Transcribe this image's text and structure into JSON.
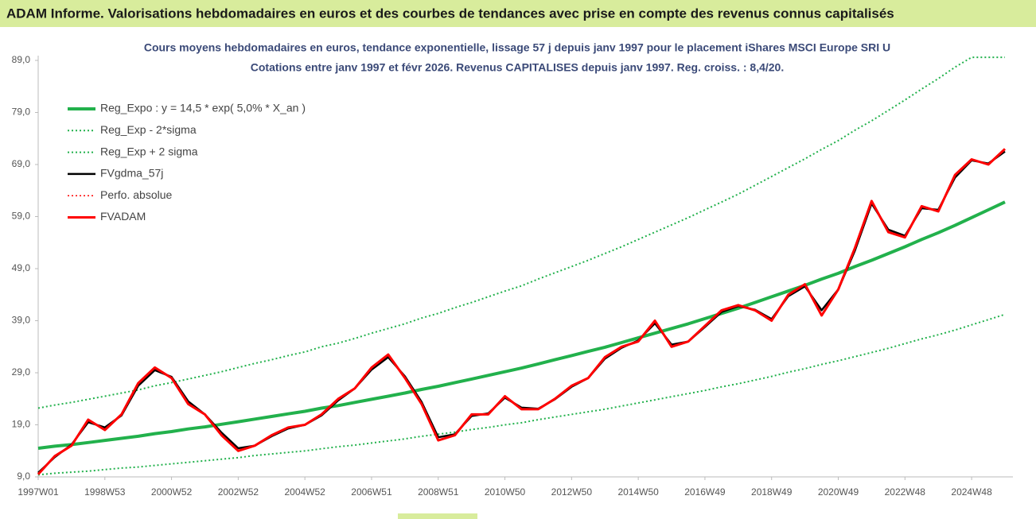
{
  "header": {
    "title": "ADAM Informe. Valorisations hebdomadaires en euros et des courbes de tendances avec prise en compte des revenus connus capitalisés"
  },
  "chart_data": {
    "type": "line",
    "title": "Cours moyens hebdomadaires en euros, tendance exponentielle, lissage 57 j depuis janv 1997 pour le placement iShares MSCI Europe SRI U",
    "subtitle": "Cotations entre janv 1997 et févr 2026. Revenus CAPITALISES depuis janv 1997. Reg. croiss. : 8,4/20.",
    "categories": [
      "1997W01",
      null,
      null,
      null,
      "1998W53",
      null,
      null,
      null,
      "2000W52",
      null,
      null,
      null,
      "2002W52",
      null,
      null,
      null,
      "2004W52",
      null,
      null,
      null,
      "2006W51",
      null,
      null,
      null,
      "2008W51",
      null,
      null,
      null,
      "2010W50",
      null,
      null,
      null,
      "2012W50",
      null,
      null,
      null,
      "2014W50",
      null,
      null,
      null,
      "2016W49",
      null,
      null,
      null,
      "2018W49",
      null,
      null,
      null,
      "2020W49",
      null,
      null,
      null,
      "2022W48",
      null,
      null,
      null,
      "2024W48",
      null,
      null
    ],
    "ylim": [
      9,
      89
    ],
    "yticks": [
      {
        "value": 9,
        "label": "9,0"
      },
      {
        "value": 19,
        "label": "19,0"
      },
      {
        "value": 29,
        "label": "29,0"
      },
      {
        "value": 39,
        "label": "39,0"
      },
      {
        "value": 49,
        "label": "49,0"
      },
      {
        "value": 59,
        "label": "59,0"
      },
      {
        "value": 69,
        "label": "69,0"
      },
      {
        "value": 79,
        "label": "79,0"
      },
      {
        "value": 89,
        "label": "89,0"
      }
    ],
    "grid": false,
    "series": [
      {
        "name": "Reg_Expo : y = 14,5 * exp( 5,0% *  X_an )",
        "color": "#22b14c",
        "width": 4,
        "dash": false,
        "values": [
          14.5,
          14.9,
          15.2,
          15.6,
          16.0,
          16.4,
          16.8,
          17.3,
          17.7,
          18.2,
          18.6,
          19.1,
          19.6,
          20.1,
          20.6,
          21.1,
          21.6,
          22.2,
          22.7,
          23.3,
          23.9,
          24.5,
          25.1,
          25.8,
          26.4,
          27.1,
          27.8,
          28.5,
          29.2,
          29.9,
          30.7,
          31.5,
          32.3,
          33.1,
          33.9,
          34.8,
          35.7,
          36.6,
          37.5,
          38.4,
          39.4,
          40.4,
          41.4,
          42.5,
          43.6,
          44.7,
          45.8,
          47.0,
          48.1,
          49.4,
          50.6,
          51.9,
          53.2,
          54.6,
          55.9,
          57.3,
          58.8,
          60.3,
          61.8
        ]
      },
      {
        "name": "Reg_Exp - 2*sigma",
        "color": "#22b14c",
        "width": 2,
        "dash": true,
        "values": [
          9.4,
          9.7,
          9.9,
          10.1,
          10.4,
          10.7,
          10.9,
          11.2,
          11.5,
          11.8,
          12.1,
          12.4,
          12.7,
          13.1,
          13.4,
          13.7,
          14.0,
          14.4,
          14.8,
          15.1,
          15.5,
          15.9,
          16.3,
          16.8,
          17.2,
          17.6,
          18.1,
          18.5,
          19.0,
          19.4,
          20.0,
          20.5,
          21.0,
          21.5,
          22.0,
          22.6,
          23.2,
          23.8,
          24.4,
          25.0,
          25.6,
          26.3,
          26.9,
          27.6,
          28.3,
          29.1,
          29.8,
          30.6,
          31.3,
          32.1,
          32.9,
          33.7,
          34.6,
          35.5,
          36.3,
          37.2,
          38.2,
          39.2,
          40.2
        ]
      },
      {
        "name": "Reg_Exp + 2 sigma",
        "color": "#22b14c",
        "width": 2,
        "dash": true,
        "values": [
          22.2,
          22.8,
          23.3,
          23.9,
          24.5,
          25.1,
          25.7,
          26.5,
          27.1,
          27.8,
          28.5,
          29.2,
          30.0,
          30.8,
          31.5,
          32.3,
          33.0,
          34.0,
          34.7,
          35.6,
          36.6,
          37.5,
          38.4,
          39.5,
          40.4,
          41.5,
          42.5,
          43.6,
          44.7,
          45.7,
          47.0,
          48.2,
          49.4,
          50.6,
          51.9,
          53.2,
          54.6,
          56.0,
          57.4,
          58.8,
          60.3,
          61.8,
          63.3,
          65.0,
          66.7,
          68.4,
          70.1,
          71.9,
          73.6,
          75.6,
          77.4,
          79.4,
          81.4,
          83.5,
          85.5,
          87.7,
          89.6,
          89.6,
          89.6
        ]
      },
      {
        "name": "FVgdma_57j",
        "color": "#000000",
        "width": 2.5,
        "dash": false,
        "values": [
          9.8,
          12.8,
          15.2,
          19.5,
          18.5,
          20.8,
          26.5,
          29.5,
          28.2,
          23.5,
          21.0,
          17.5,
          14.5,
          15.0,
          16.8,
          18.3,
          19.0,
          20.8,
          23.7,
          26.0,
          29.6,
          32.0,
          28.3,
          23.4,
          16.6,
          17.2,
          20.7,
          21.2,
          24.2,
          22.3,
          22.1,
          23.9,
          26.3,
          28.0,
          31.7,
          33.8,
          35.2,
          38.5,
          34.4,
          35.0,
          37.8,
          40.7,
          41.8,
          41.1,
          39.3,
          43.7,
          45.6,
          41.0,
          45.0,
          52.5,
          61.5,
          56.5,
          55.3,
          60.6,
          60.3,
          66.5,
          69.8,
          69.2,
          71.5
        ]
      },
      {
        "name": "Perfo. absolue",
        "color": "#ff0000",
        "width": 1.5,
        "dash": true,
        "values": [
          9.5,
          13,
          15,
          20,
          18,
          21,
          27,
          30,
          28,
          23,
          21,
          17,
          14,
          15,
          17,
          18.5,
          19,
          21,
          24,
          26,
          30,
          32.5,
          28,
          23,
          16,
          17,
          21,
          21,
          24.5,
          22,
          22,
          24,
          26.5,
          28,
          32,
          34,
          35,
          39,
          34,
          35,
          38,
          41,
          42,
          41,
          39,
          44,
          46,
          40,
          45,
          53,
          62,
          56,
          55,
          61,
          60,
          67,
          70,
          69,
          72
        ]
      },
      {
        "name": "FVADAM",
        "color": "#ff0000",
        "width": 3,
        "dash": false,
        "values": [
          9.5,
          13,
          15,
          20,
          18,
          21,
          27,
          30,
          28,
          23,
          21,
          17,
          14,
          15,
          17,
          18.5,
          19,
          21,
          24,
          26,
          30,
          32.5,
          28,
          23,
          16,
          17,
          21,
          21,
          24.5,
          22,
          22,
          24,
          26.5,
          28,
          32,
          34,
          35,
          39,
          34,
          35,
          38,
          41,
          42,
          41,
          39,
          44,
          46,
          40,
          45,
          53,
          62,
          56,
          55,
          61,
          60,
          67,
          70,
          69,
          72
        ]
      }
    ]
  }
}
